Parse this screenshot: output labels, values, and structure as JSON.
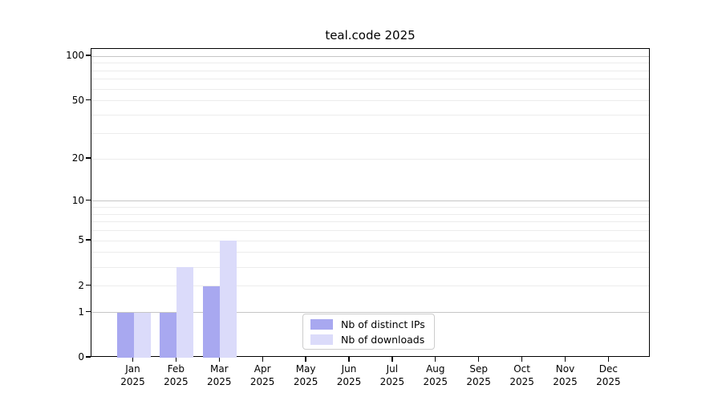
{
  "chart_data": {
    "type": "bar",
    "title": "teal.code 2025",
    "x_months": [
      "Jan",
      "Feb",
      "Mar",
      "Apr",
      "May",
      "Jun",
      "Jul",
      "Aug",
      "Sep",
      "Oct",
      "Nov",
      "Dec"
    ],
    "x_year": "2025",
    "series": [
      {
        "name": "Nb of distinct IPs",
        "color": "#a8a8f0",
        "values": [
          1,
          1,
          2,
          0,
          0,
          0,
          0,
          0,
          0,
          0,
          0,
          0
        ]
      },
      {
        "name": "Nb of downloads",
        "color": "#dbdbfa",
        "values": [
          1,
          3,
          5,
          0,
          0,
          0,
          0,
          0,
          0,
          0,
          0,
          0
        ]
      }
    ],
    "y_axis": {
      "scale": "log10(1+y)",
      "tick_labels": [
        0,
        1,
        2,
        5,
        10,
        20,
        50,
        100
      ],
      "major_gridlines": [
        1,
        10,
        100
      ],
      "minor_gridlines": [
        2,
        3,
        4,
        5,
        6,
        7,
        8,
        9,
        20,
        30,
        40,
        50,
        60,
        70,
        80,
        90
      ],
      "ylim": [
        0,
        112
      ]
    },
    "grid": true,
    "legend": {
      "location": "lower center inside plot",
      "entries": [
        "Nb of distinct IPs",
        "Nb of downloads"
      ]
    }
  }
}
